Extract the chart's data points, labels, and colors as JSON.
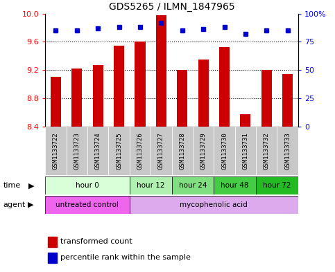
{
  "title": "GDS5265 / ILMN_1847965",
  "samples": [
    "GSM1133722",
    "GSM1133723",
    "GSM1133724",
    "GSM1133725",
    "GSM1133726",
    "GSM1133727",
    "GSM1133728",
    "GSM1133729",
    "GSM1133730",
    "GSM1133731",
    "GSM1133732",
    "GSM1133733"
  ],
  "bar_values": [
    9.1,
    9.22,
    9.27,
    9.55,
    9.6,
    9.98,
    9.2,
    9.35,
    9.53,
    8.57,
    9.2,
    9.14
  ],
  "percentile_values": [
    85,
    85,
    87,
    88,
    88,
    92,
    85,
    86,
    88,
    82,
    85,
    85
  ],
  "ylim_left": [
    8.4,
    10.0
  ],
  "ylim_right": [
    0,
    100
  ],
  "yticks_left": [
    8.4,
    8.8,
    9.2,
    9.6,
    10.0
  ],
  "yticks_right": [
    0,
    25,
    50,
    75,
    100
  ],
  "bar_color": "#cc0000",
  "dot_color": "#0000cc",
  "bg_color": "#ffffff",
  "plot_bg": "#ffffff",
  "sample_bg_color": "#c8c8c8",
  "time_groups": [
    {
      "label": "hour 0",
      "start": 0,
      "end": 4,
      "color": "#d8ffd8"
    },
    {
      "label": "hour 12",
      "start": 4,
      "end": 6,
      "color": "#b0f0b0"
    },
    {
      "label": "hour 24",
      "start": 6,
      "end": 8,
      "color": "#80e080"
    },
    {
      "label": "hour 48",
      "start": 8,
      "end": 10,
      "color": "#44cc44"
    },
    {
      "label": "hour 72",
      "start": 10,
      "end": 12,
      "color": "#22bb22"
    }
  ],
  "agent_groups": [
    {
      "label": "untreated control",
      "start": 0,
      "end": 4,
      "color": "#ee66ee"
    },
    {
      "label": "mycophenolic acid",
      "start": 4,
      "end": 12,
      "color": "#ddaaee"
    }
  ],
  "legend_bar_label": "transformed count",
  "legend_dot_label": "percentile rank within the sample",
  "xlabel_time": "time",
  "xlabel_agent": "agent"
}
